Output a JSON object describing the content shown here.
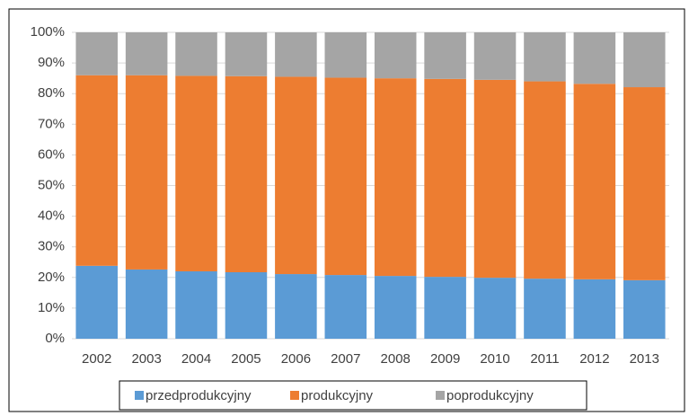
{
  "chart_data": {
    "type": "stacked_bar",
    "categories": [
      "2002",
      "2003",
      "2004",
      "2005",
      "2006",
      "2007",
      "2008",
      "2009",
      "2010",
      "2011",
      "2012",
      "2013"
    ],
    "series": [
      {
        "name": "przedprodukcyjny",
        "color": "#5b9bd5",
        "values": [
          23.8,
          22.6,
          22.0,
          21.7,
          21.1,
          20.8,
          20.5,
          20.2,
          19.9,
          19.6,
          19.4,
          19.1
        ]
      },
      {
        "name": "produkcyjny",
        "color": "#ed7d31",
        "values": [
          62.2,
          63.4,
          63.8,
          64.0,
          64.4,
          64.4,
          64.5,
          64.6,
          64.6,
          64.4,
          63.8,
          63.0
        ]
      },
      {
        "name": "poprodukcyjny",
        "color": "#a5a5a5",
        "values": [
          14.0,
          14.0,
          14.2,
          14.3,
          14.5,
          14.8,
          15.0,
          15.2,
          15.5,
          16.0,
          16.8,
          17.9
        ]
      }
    ],
    "ylim": [
      0,
      100
    ],
    "yticks": [
      {
        "value": 0,
        "label": "0%"
      },
      {
        "value": 10,
        "label": "10%"
      },
      {
        "value": 20,
        "label": "20%"
      },
      {
        "value": 30,
        "label": "30%"
      },
      {
        "value": 40,
        "label": "40%"
      },
      {
        "value": 50,
        "label": "50%"
      },
      {
        "value": 60,
        "label": "60%"
      },
      {
        "value": 70,
        "label": "70%"
      },
      {
        "value": 80,
        "label": "80%"
      },
      {
        "value": 90,
        "label": "90%"
      },
      {
        "value": 100,
        "label": "100%"
      }
    ],
    "grid": true,
    "legend": "bottom"
  }
}
